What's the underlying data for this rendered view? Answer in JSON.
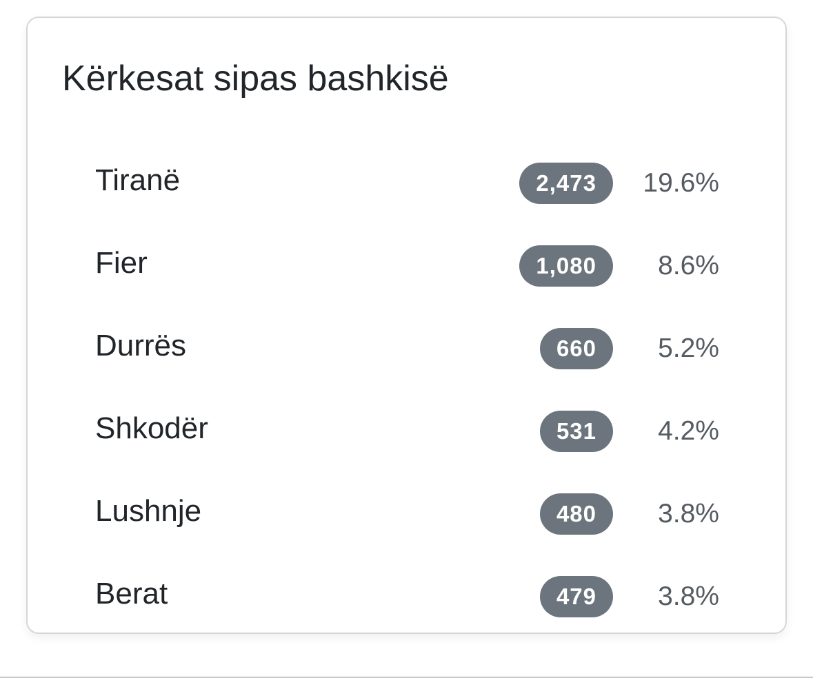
{
  "card": {
    "title": "Kërkesat sipas bashkisë",
    "items": [
      {
        "name": "Tiranë",
        "count": "2,473",
        "percent": "19.6%"
      },
      {
        "name": "Fier",
        "count": "1,080",
        "percent": "8.6%"
      },
      {
        "name": "Durrës",
        "count": "660",
        "percent": "5.2%"
      },
      {
        "name": "Shkodër",
        "count": "531",
        "percent": "4.2%"
      },
      {
        "name": "Lushnje",
        "count": "480",
        "percent": "3.8%"
      },
      {
        "name": "Berat",
        "count": "479",
        "percent": "3.8%"
      }
    ]
  },
  "colors": {
    "badge": "#6c757d",
    "text": "#212529",
    "percent": "#555b61"
  }
}
